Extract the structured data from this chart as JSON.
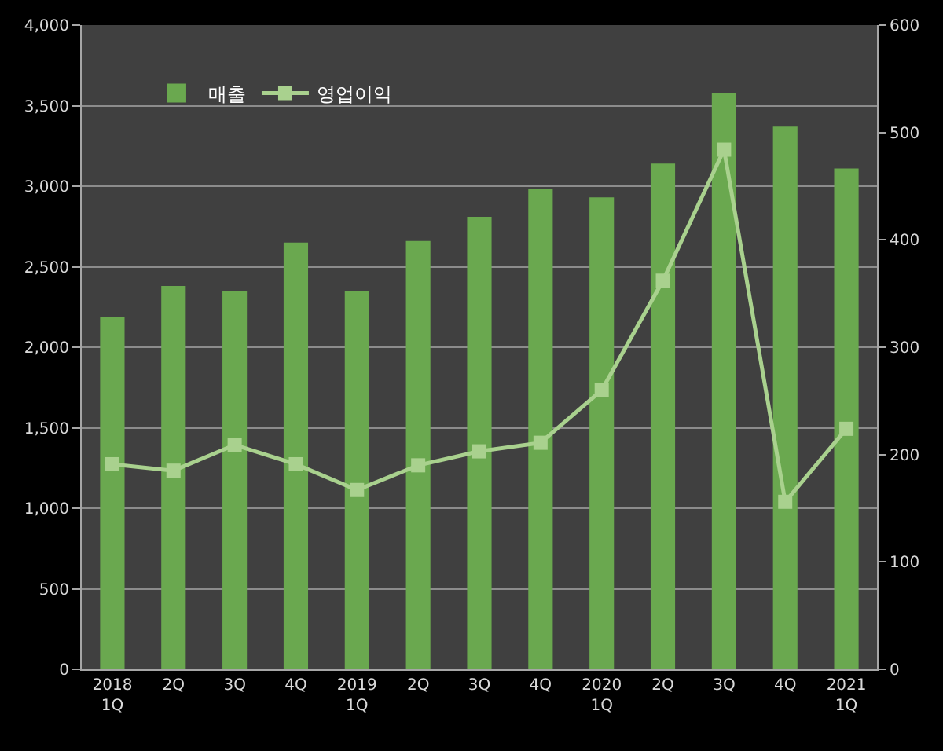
{
  "chart_data": {
    "type": "bar",
    "categories": [
      "2018\n1Q",
      "2Q",
      "3Q",
      "4Q",
      "2019\n1Q",
      "2Q",
      "3Q",
      "4Q",
      "2020\n1Q",
      "2Q",
      "3Q",
      "4Q",
      "2021\n1Q"
    ],
    "series": [
      {
        "name": "매출",
        "color": "#6aa84f",
        "values": [
          2190,
          2380,
          2350,
          2650,
          2350,
          2660,
          2810,
          2980,
          2930,
          3140,
          3580,
          3370,
          3110
        ]
      },
      {
        "name": "영업이익",
        "type": "line",
        "axis": "y2",
        "color": "#a9d18e",
        "values": [
          191,
          185,
          209,
          191,
          167,
          190,
          203,
          211,
          260,
          362,
          484,
          156,
          224
        ]
      }
    ],
    "ylim": [
      0,
      4000
    ],
    "yticks": [
      {
        "value": 0,
        "label": "0"
      },
      {
        "value": 500,
        "label": "500"
      },
      {
        "value": 1000,
        "label": "1,000"
      },
      {
        "value": 1500,
        "label": "1,500"
      },
      {
        "value": 2000,
        "label": "2,000"
      },
      {
        "value": 2500,
        "label": "2,500"
      },
      {
        "value": 3000,
        "label": "3,000"
      },
      {
        "value": 3500,
        "label": "3,500"
      },
      {
        "value": 4000,
        "label": "4,000"
      }
    ],
    "y2lim": [
      0,
      600
    ],
    "y2ticks": [
      0,
      100,
      200,
      300,
      400,
      500,
      600
    ],
    "grid": "y",
    "legend": "top left",
    "marker": "square",
    "line_style": "solid"
  }
}
